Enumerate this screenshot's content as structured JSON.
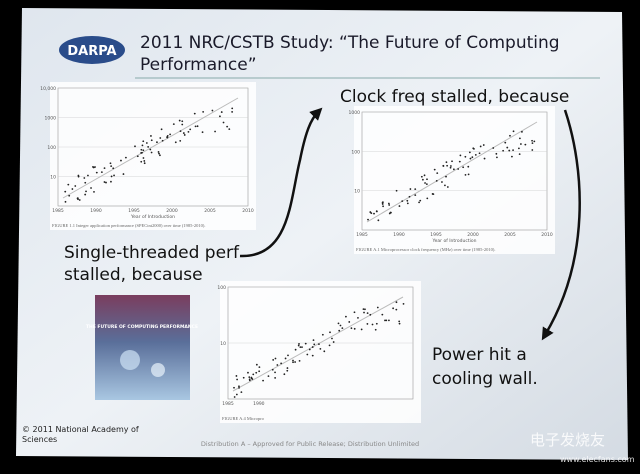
{
  "logo": "DARPA",
  "title": [
    "2011 NRC/CSTB Study: “The Future of Computing",
    "Performance”"
  ],
  "callouts": {
    "single_threaded": [
      "Single-threaded perf",
      "stalled, because"
    ],
    "clock": "Clock freq stalled, because",
    "power": [
      "Power hit a",
      "cooling wall."
    ]
  },
  "charts": [
    {
      "y_labels": [
        "10,000",
        "1000",
        "100",
        "10"
      ],
      "x_labels": [
        "1985",
        "1990",
        "1995",
        "2000",
        "2005",
        "2010"
      ],
      "x_title": "Year of Introduction",
      "caption": "FIGURE 1.1 Integer application performance (SPECint2000) over time (1985-2010)."
    },
    {
      "y_labels": [
        "1000",
        "100",
        "10"
      ],
      "x_labels": [
        "1985",
        "1990",
        "1995",
        "2000",
        "2005",
        "2010"
      ],
      "x_title": "Year of Introduction",
      "caption": "FIGURE A.1 Microprocessor clock frequency (MHz) over time (1985-2010)."
    },
    {
      "y_labels": [
        "100",
        "10"
      ],
      "x_labels": [
        "1985",
        "1990"
      ],
      "x_title": "",
      "caption": "FIGURE A.4 Micropro"
    }
  ],
  "book": "THE FUTURE OF COMPUTING PERFORMANCE",
  "footer": {
    "copyright": [
      "© 2011 National Academy of",
      "Sciences"
    ],
    "distribution": "Distribution A – Approved for Public Release; Distribution Unlimited"
  },
  "watermark": {
    "name": "电子发烧友",
    "url": "www.elecfans.com"
  }
}
